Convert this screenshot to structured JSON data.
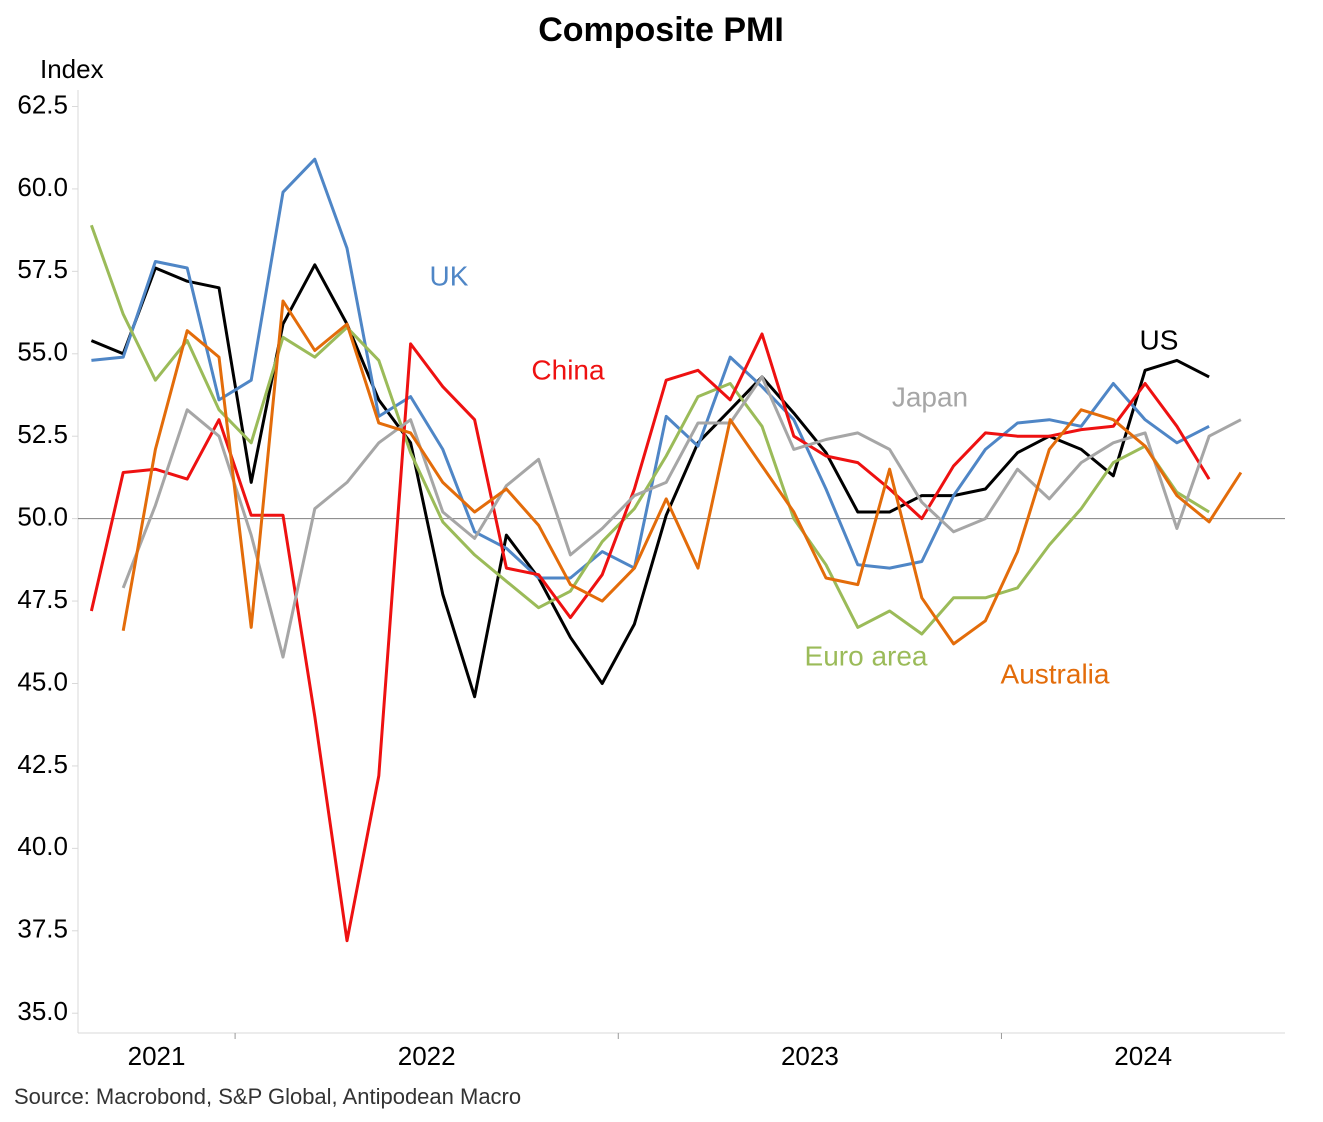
{
  "chart_data": {
    "type": "line",
    "title": "Composite PMI",
    "ylabel": "Index",
    "source": "Source: Macrobond, S&P Global, Antipodean Macro",
    "x": [
      2021.625,
      2021.708,
      2021.792,
      2021.875,
      2021.958,
      2022.042,
      2022.125,
      2022.208,
      2022.292,
      2022.375,
      2022.458,
      2022.542,
      2022.625,
      2022.708,
      2022.792,
      2022.875,
      2022.958,
      2023.042,
      2023.125,
      2023.208,
      2023.292,
      2023.375,
      2023.458,
      2023.542,
      2023.625,
      2023.708,
      2023.792,
      2023.875,
      2023.958,
      2024.042,
      2024.125,
      2024.208,
      2024.292,
      2024.375,
      2024.458,
      2024.542,
      2024.625
    ],
    "xlim": [
      2021.59,
      2024.74
    ],
    "xticks": [
      2022,
      2023,
      2024
    ],
    "year_labels": [
      2021,
      2022,
      2023,
      2024
    ],
    "ylim": [
      34.4,
      63.0
    ],
    "yticks": [
      {
        "value": 35,
        "label": "35.0"
      },
      37.5,
      {
        "value": 40,
        "label": "40.0"
      },
      42.5,
      {
        "value": 45,
        "label": "45.0"
      },
      47.5,
      {
        "value": 50,
        "label": "50.0"
      },
      52.5,
      {
        "value": 55,
        "label": "55.0"
      },
      57.5,
      {
        "value": 60,
        "label": "60.0"
      },
      62.5
    ],
    "reference_line": 50,
    "grid": false,
    "series": [
      {
        "name": "US",
        "color": "#000000",
        "values": [
          55.4,
          55.0,
          57.6,
          57.2,
          57.0,
          51.1,
          55.9,
          57.7,
          55.9,
          53.6,
          52.3,
          47.7,
          44.6,
          49.5,
          48.2,
          46.4,
          45.0,
          46.8,
          50.1,
          52.3,
          53.3,
          54.3,
          53.2,
          52.0,
          50.2,
          50.2,
          50.7,
          50.7,
          50.9,
          52.0,
          52.5,
          52.1,
          51.3,
          54.5,
          54.8,
          54.3,
          null
        ]
      },
      {
        "name": "UK",
        "color": "#4f86c6",
        "values": [
          54.8,
          54.9,
          57.8,
          57.6,
          53.6,
          54.2,
          59.9,
          60.9,
          58.2,
          53.1,
          53.7,
          52.1,
          49.6,
          49.1,
          48.2,
          48.2,
          49.0,
          48.5,
          53.1,
          52.2,
          54.9,
          54.0,
          53.0,
          50.9,
          48.6,
          48.5,
          48.7,
          50.7,
          52.1,
          52.9,
          53.0,
          52.8,
          54.1,
          53.0,
          52.3,
          52.8,
          null
        ]
      },
      {
        "name": "Euro area",
        "color": "#9bbb59",
        "values": [
          58.9,
          56.2,
          54.2,
          55.4,
          53.3,
          52.3,
          55.5,
          54.9,
          55.8,
          54.8,
          52.0,
          49.9,
          48.9,
          48.1,
          47.3,
          47.8,
          49.3,
          50.3,
          51.9,
          53.7,
          54.1,
          52.8,
          50.0,
          48.6,
          46.7,
          47.2,
          46.5,
          47.6,
          47.6,
          47.9,
          49.2,
          50.3,
          51.7,
          52.2,
          50.8,
          50.2,
          null
        ]
      },
      {
        "name": "China",
        "color": "#ee1111",
        "values": [
          47.2,
          51.4,
          51.5,
          51.2,
          53.0,
          50.1,
          50.1,
          44.0,
          37.2,
          42.2,
          55.3,
          54.0,
          53.0,
          48.5,
          48.3,
          47.0,
          48.3,
          50.9,
          54.2,
          54.5,
          53.6,
          55.6,
          52.5,
          51.9,
          51.7,
          50.9,
          50.0,
          51.6,
          52.6,
          52.5,
          52.5,
          52.7,
          52.8,
          54.1,
          52.8,
          51.2,
          null
        ]
      },
      {
        "name": "Japan",
        "color": "#a6a6a6",
        "values": [
          null,
          47.9,
          50.4,
          53.3,
          52.5,
          49.5,
          45.8,
          50.3,
          51.1,
          52.3,
          53.0,
          50.2,
          49.4,
          51.0,
          51.8,
          48.9,
          49.7,
          50.7,
          51.1,
          52.9,
          52.9,
          54.3,
          52.1,
          52.4,
          52.6,
          52.1,
          50.5,
          49.6,
          50.0,
          51.5,
          50.6,
          51.7,
          52.3,
          52.6,
          49.7,
          52.5,
          53.0
        ]
      },
      {
        "name": "Australia",
        "color": "#e36c0a",
        "values": [
          null,
          46.6,
          52.1,
          55.7,
          54.9,
          46.7,
          56.6,
          55.1,
          55.9,
          52.9,
          52.6,
          51.1,
          50.2,
          50.9,
          49.8,
          48.0,
          47.5,
          48.5,
          50.6,
          48.5,
          53.0,
          51.6,
          50.2,
          48.2,
          48.0,
          51.5,
          47.6,
          46.2,
          46.9,
          49.0,
          52.1,
          53.3,
          53.0,
          52.2,
          50.7,
          49.9,
          51.4
        ]
      }
    ]
  }
}
